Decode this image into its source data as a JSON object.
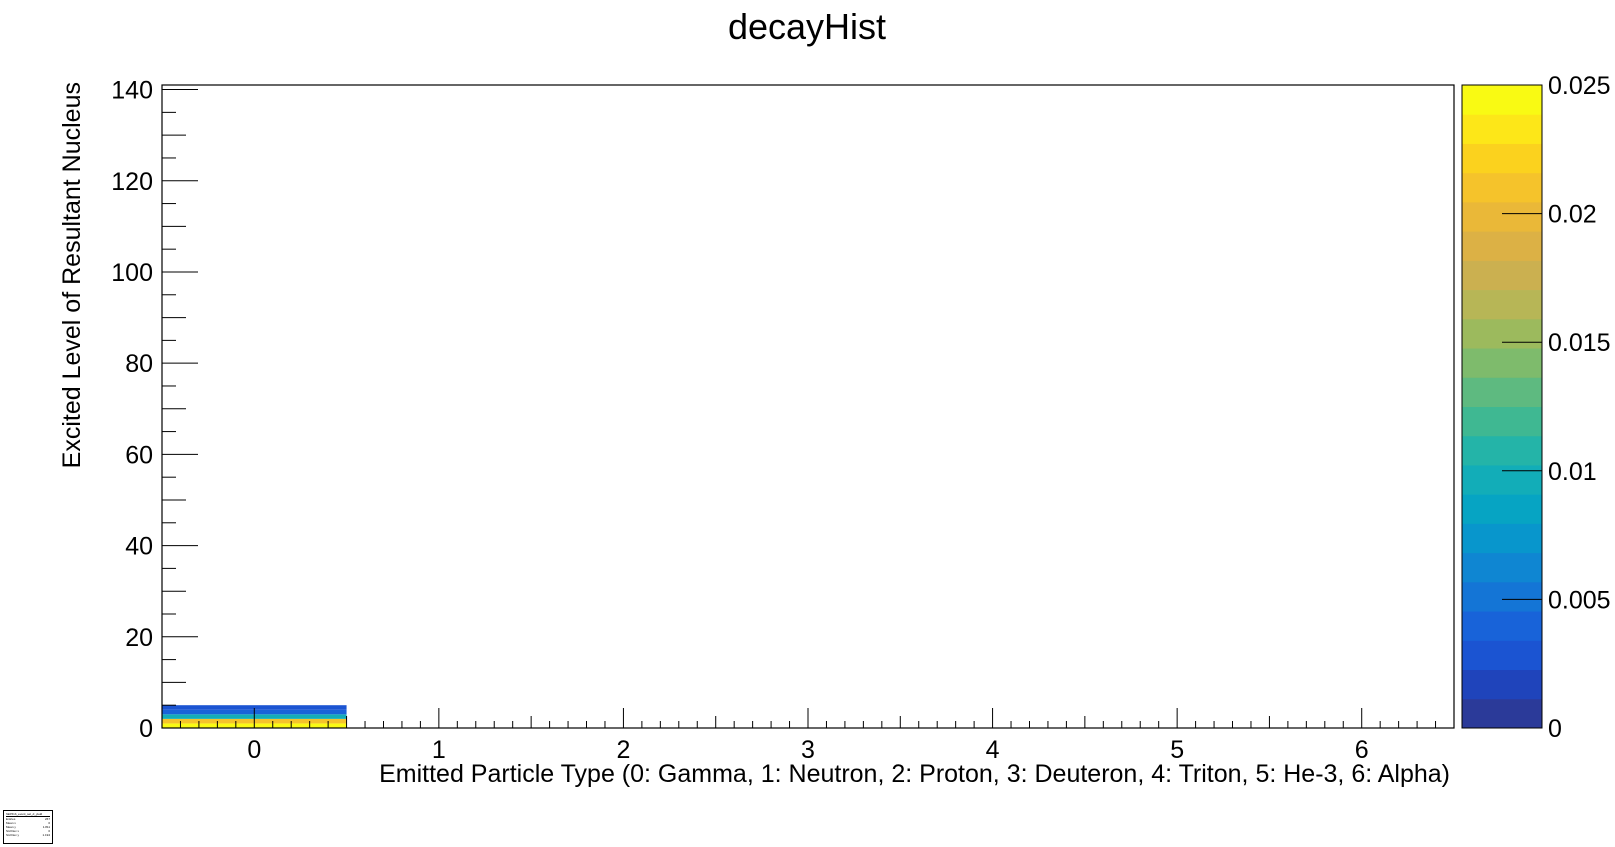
{
  "chart_data": {
    "type": "heatmap",
    "title": "decayHist",
    "xlabel": "Emitted Particle Type (0: Gamma, 1: Neutron, 2: Proton, 3: Deuteron, 4: Triton, 5: He-3, 6: Alpha)",
    "ylabel": "Excited Level of Resultant Nucleus",
    "xlim": [
      -0.5,
      6.5
    ],
    "ylim": [
      0,
      141
    ],
    "x_ticks": [
      0,
      1,
      2,
      3,
      4,
      5,
      6
    ],
    "x_tick_labels": [
      "0",
      "1",
      "2",
      "3",
      "4",
      "5",
      "6"
    ],
    "y_ticks": [
      0,
      20,
      40,
      60,
      80,
      100,
      120,
      140
    ],
    "y_tick_labels": [
      "0",
      "20",
      "40",
      "60",
      "80",
      "100",
      "120",
      "140"
    ],
    "z_range": [
      0,
      0.025
    ],
    "z_ticks": [
      0,
      0.005,
      0.01,
      0.015,
      0.02,
      0.025
    ],
    "z_tick_labels": [
      "0",
      "0.005",
      "0.01",
      "0.015",
      "0.02",
      "0.025"
    ],
    "bin_height": 1,
    "cells": [
      {
        "x": 0,
        "y": 0,
        "z": 0.0249
      },
      {
        "x": 0,
        "y": 1,
        "z": 0.021
      },
      {
        "x": 0,
        "y": 2,
        "z": 0.0092
      },
      {
        "x": 0,
        "y": 3,
        "z": 0.0045
      },
      {
        "x": 0,
        "y": 4,
        "z": 0.003
      }
    ],
    "palette": [
      "#2b3a99",
      "#1f44bb",
      "#1b54d2",
      "#1863d9",
      "#1475d6",
      "#0f86d2",
      "#0896cc",
      "#06a4c3",
      "#12adb8",
      "#24b4a8",
      "#3fb892",
      "#5eba80",
      "#7ebb6c",
      "#9cba5d",
      "#b7b656",
      "#cbb050",
      "#dcb145",
      "#eab838",
      "#f5c32b",
      "#fbd21e",
      "#fde718",
      "#f9fa13"
    ]
  },
  "stats_box": {
    "title": "hEF51b_event_sel_d_yield",
    "rows": [
      {
        "label": "Entries",
        "value": "267"
      },
      {
        "label": "Mean x",
        "value": "0"
      },
      {
        "label": "Mean y",
        "value": "1.811"
      },
      {
        "label": "Std Dev x",
        "value": "0"
      },
      {
        "label": "Std Dev y",
        "value": "1.194"
      }
    ]
  }
}
